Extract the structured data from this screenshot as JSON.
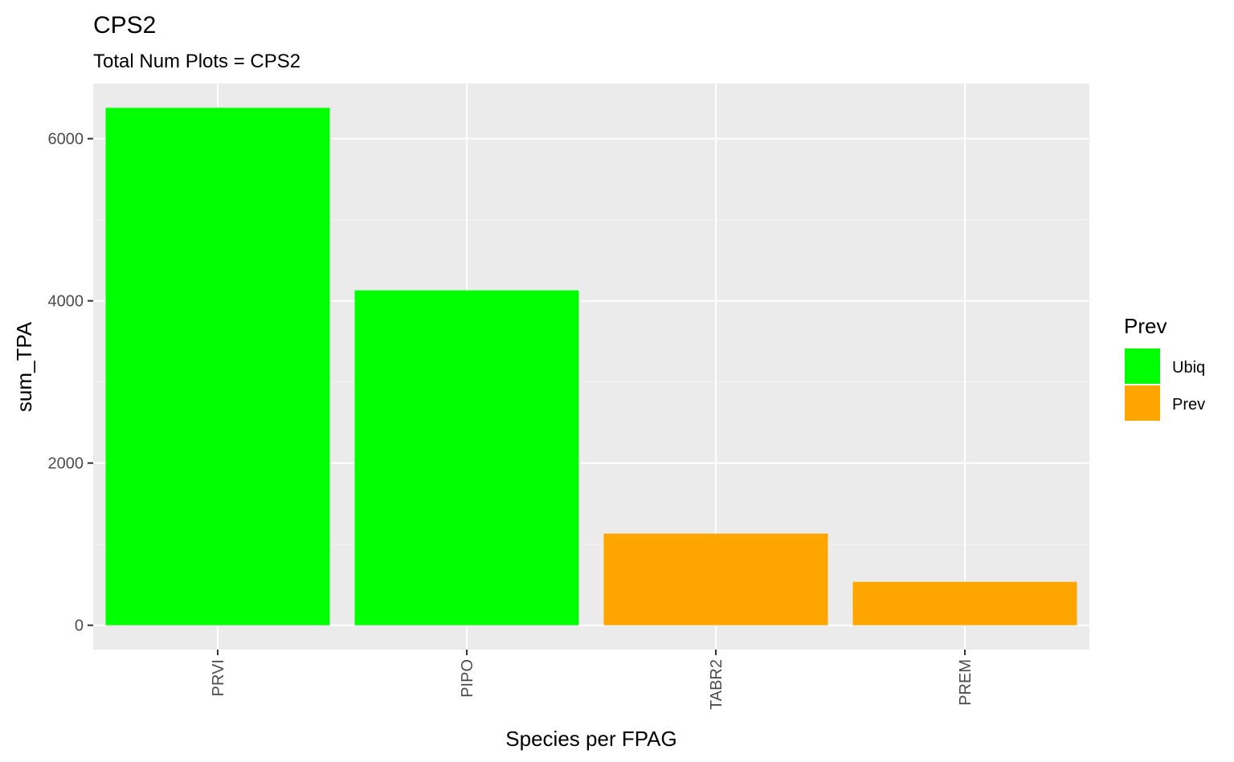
{
  "chart_data": {
    "type": "bar",
    "title": "CPS2",
    "subtitle": "Total Num Plots = CPS2",
    "xlabel": "Species per FPAG",
    "ylabel": "sum_TPA",
    "categories": [
      "PRVI",
      "PIPO",
      "TABR2",
      "PREM"
    ],
    "values": [
      6380,
      4130,
      1130,
      535
    ],
    "groups": [
      "Ubiq",
      "Ubiq",
      "Prev",
      "Prev"
    ],
    "ylim": [
      -300,
      6680
    ],
    "yticks": [
      0,
      2000,
      4000,
      6000
    ],
    "ytick_labels": [
      "0",
      "2000",
      "4000",
      "6000"
    ],
    "grid": true,
    "legend": {
      "title": "Prev",
      "position": "right",
      "items": [
        {
          "label": "Ubiq",
          "color": "#00ff00"
        },
        {
          "label": "Prev",
          "color": "#ffa500"
        }
      ]
    },
    "colors": {
      "panel_background": "#ebebeb",
      "grid_major": "#ffffff",
      "grid_minor": "#f5f5f5",
      "tick_text": "#4d4d4d",
      "tick_mark": "#333333"
    }
  }
}
